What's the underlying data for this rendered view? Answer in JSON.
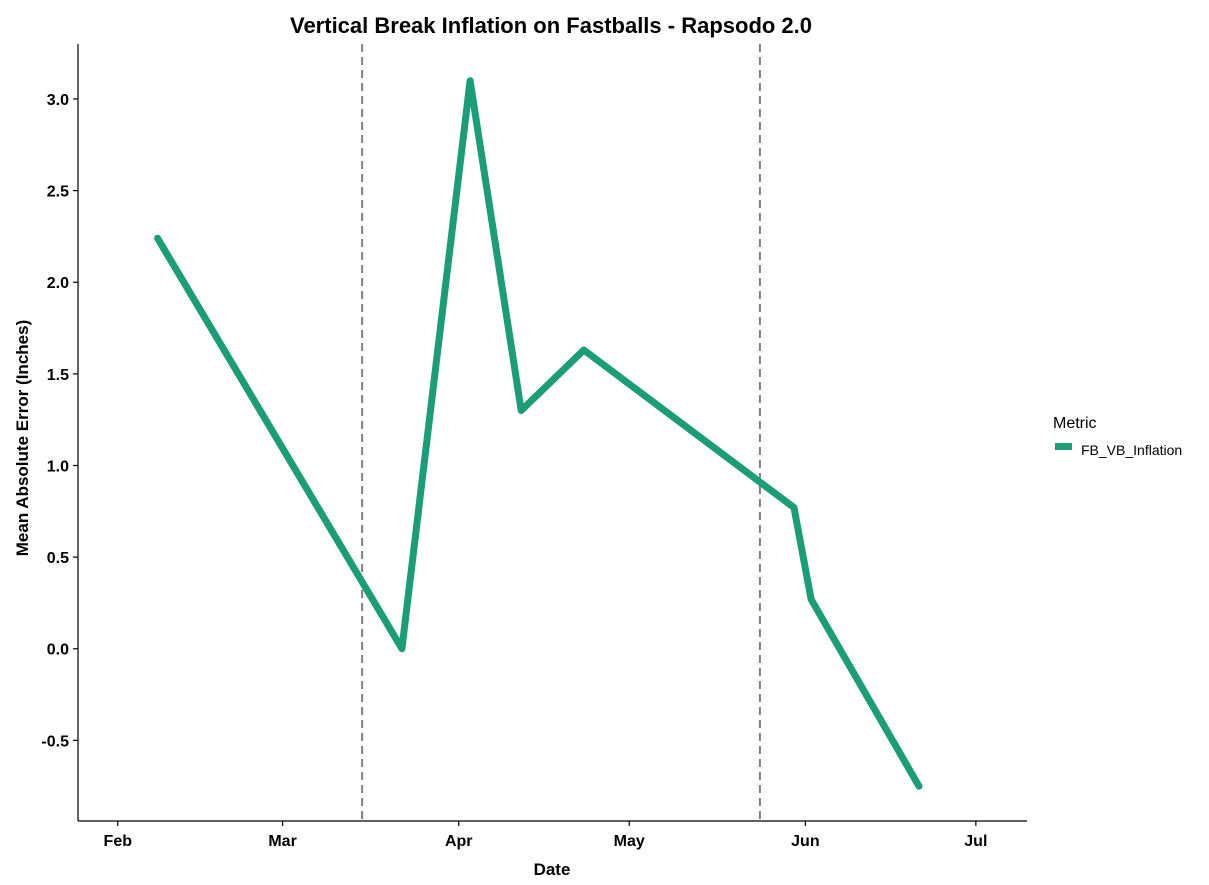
{
  "chart_data": {
    "type": "line",
    "title": "Vertical Break Inflation on Fastballs - Rapsodo 2.0",
    "xlabel": "Date",
    "ylabel": "Mean Absolute Error (Inches)",
    "x_tick_labels": [
      "Feb",
      "Mar",
      "Apr",
      "May",
      "Jun",
      "Jul"
    ],
    "x_ticks": [
      "2024-02-01",
      "2024-03-01",
      "2024-04-01",
      "2024-05-01",
      "2024-06-01",
      "2024-07-01"
    ],
    "xlim": [
      "2024-01-25",
      "2024-07-10"
    ],
    "y_ticks": [
      -0.5,
      0.0,
      0.5,
      1.0,
      1.5,
      2.0,
      2.5,
      3.0
    ],
    "y_tick_labels": [
      "-0.5",
      "0.0",
      "0.5",
      "1.0",
      "1.5",
      "2.0",
      "2.5",
      "3.0"
    ],
    "ylim": [
      -0.94,
      3.3
    ],
    "vlines": [
      "2024-03-15",
      "2024-05-24"
    ],
    "legend": {
      "title": "Metric",
      "position": "right"
    },
    "grid": false,
    "series": [
      {
        "name": "FB_VB_Inflation",
        "color": "#1B9E77",
        "points": [
          {
            "x": "2024-02-08",
            "y": 2.24
          },
          {
            "x": "2024-03-22",
            "y": 0.0
          },
          {
            "x": "2024-04-03",
            "y": 3.1
          },
          {
            "x": "2024-04-12",
            "y": 1.3
          },
          {
            "x": "2024-04-23",
            "y": 1.63
          },
          {
            "x": "2024-05-30",
            "y": 0.77
          },
          {
            "x": "2024-06-02",
            "y": 0.27
          },
          {
            "x": "2024-06-21",
            "y": -0.75
          }
        ]
      }
    ]
  }
}
